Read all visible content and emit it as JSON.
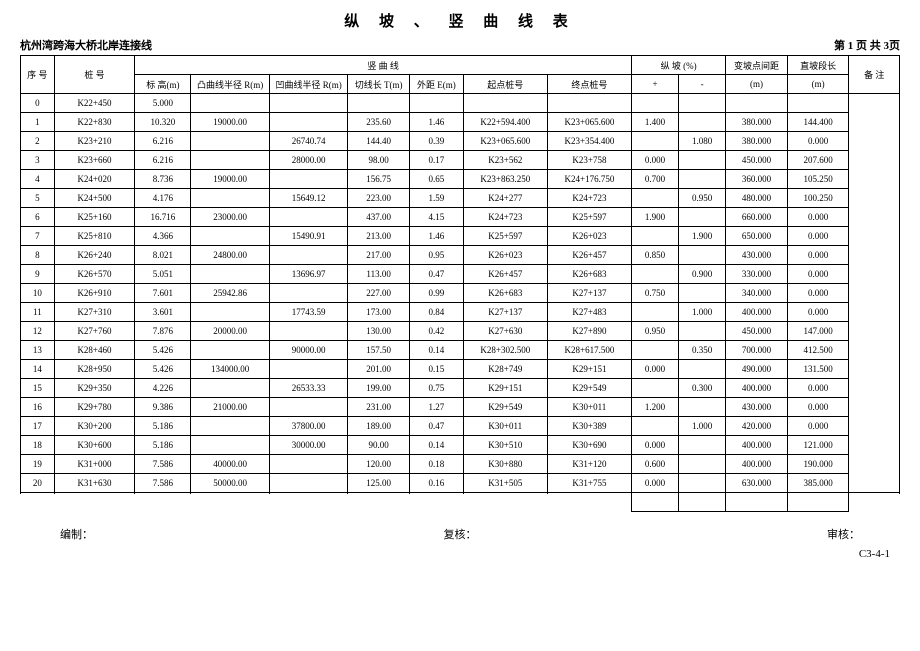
{
  "title": "纵   坡 、 竖   曲   线   表",
  "subtitle_left": "杭州湾跨海大桥北岸连接线",
  "subtitle_right": "第 1 页   共 3页",
  "header": {
    "r1": {
      "seq": "序   号",
      "station": "桩   号",
      "vcurve": "竖         曲         线",
      "slope": "纵    坡  (%)",
      "bp_dist": "变坡点间距",
      "straight": "直坡段长",
      "remark": "备   注"
    },
    "r2": {
      "elev": "标   高(m)",
      "convex": "凸曲线半径 R(m)",
      "concave": "凹曲线半径 R(m)",
      "tlen": "切线长 T(m)",
      "ext": "外距 E(m)",
      "start": "起点桩号",
      "end": "终点桩号",
      "plus": "+",
      "minus": "-",
      "m1": "(m)",
      "m2": "(m)"
    }
  },
  "rows": [
    {
      "n": "0",
      "st": "K22+450",
      "h": "5.000",
      "cv": "",
      "cc": "",
      "t": "",
      "e": "",
      "s": "",
      "d": "",
      "sp": [
        "1.400",
        ""
      ],
      "bp": "380.000",
      "sl": "144.400"
    },
    {
      "n": "1",
      "st": "K22+830",
      "h": "10.320",
      "cv": "19000.00",
      "cc": "",
      "t": "235.60",
      "e": "1.46",
      "s": "K22+594.400",
      "d": "K23+065.600",
      "sp": [
        "",
        "1.080"
      ],
      "bp": "380.000",
      "sl": "0.000"
    },
    {
      "n": "2",
      "st": "K23+210",
      "h": "6.216",
      "cv": "",
      "cc": "26740.74",
      "t": "144.40",
      "e": "0.39",
      "s": "K23+065.600",
      "d": "K23+354.400",
      "sp": [
        "0.000",
        ""
      ],
      "bp": "450.000",
      "sl": "207.600"
    },
    {
      "n": "3",
      "st": "K23+660",
      "h": "6.216",
      "cv": "",
      "cc": "28000.00",
      "t": "98.00",
      "e": "0.17",
      "s": "K23+562",
      "d": "K23+758",
      "sp": [
        "0.700",
        ""
      ],
      "bp": "360.000",
      "sl": "105.250"
    },
    {
      "n": "4",
      "st": "K24+020",
      "h": "8.736",
      "cv": "19000.00",
      "cc": "",
      "t": "156.75",
      "e": "0.65",
      "s": "K23+863.250",
      "d": "K24+176.750",
      "sp": [
        "",
        "0.950"
      ],
      "bp": "480.000",
      "sl": "100.250"
    },
    {
      "n": "5",
      "st": "K24+500",
      "h": "4.176",
      "cv": "",
      "cc": "15649.12",
      "t": "223.00",
      "e": "1.59",
      "s": "K24+277",
      "d": "K24+723",
      "sp": [
        "1.900",
        ""
      ],
      "bp": "660.000",
      "sl": "0.000"
    },
    {
      "n": "6",
      "st": "K25+160",
      "h": "16.716",
      "cv": "23000.00",
      "cc": "",
      "t": "437.00",
      "e": "4.15",
      "s": "K24+723",
      "d": "K25+597",
      "sp": [
        "",
        "1.900"
      ],
      "bp": "650.000",
      "sl": "0.000"
    },
    {
      "n": "7",
      "st": "K25+810",
      "h": "4.366",
      "cv": "",
      "cc": "15490.91",
      "t": "213.00",
      "e": "1.46",
      "s": "K25+597",
      "d": "K26+023",
      "sp": [
        "0.850",
        ""
      ],
      "bp": "430.000",
      "sl": "0.000"
    },
    {
      "n": "8",
      "st": "K26+240",
      "h": "8.021",
      "cv": "24800.00",
      "cc": "",
      "t": "217.00",
      "e": "0.95",
      "s": "K26+023",
      "d": "K26+457",
      "sp": [
        "",
        "0.900"
      ],
      "bp": "330.000",
      "sl": "0.000"
    },
    {
      "n": "9",
      "st": "K26+570",
      "h": "5.051",
      "cv": "",
      "cc": "13696.97",
      "t": "113.00",
      "e": "0.47",
      "s": "K26+457",
      "d": "K26+683",
      "sp": [
        "0.750",
        ""
      ],
      "bp": "340.000",
      "sl": "0.000"
    },
    {
      "n": "10",
      "st": "K26+910",
      "h": "7.601",
      "cv": "25942.86",
      "cc": "",
      "t": "227.00",
      "e": "0.99",
      "s": "K26+683",
      "d": "K27+137",
      "sp": [
        "",
        "1.000"
      ],
      "bp": "400.000",
      "sl": "0.000"
    },
    {
      "n": "11",
      "st": "K27+310",
      "h": "3.601",
      "cv": "",
      "cc": "17743.59",
      "t": "173.00",
      "e": "0.84",
      "s": "K27+137",
      "d": "K27+483",
      "sp": [
        "0.950",
        ""
      ],
      "bp": "450.000",
      "sl": "147.000"
    },
    {
      "n": "12",
      "st": "K27+760",
      "h": "7.876",
      "cv": "20000.00",
      "cc": "",
      "t": "130.00",
      "e": "0.42",
      "s": "K27+630",
      "d": "K27+890",
      "sp": [
        "",
        "0.350"
      ],
      "bp": "700.000",
      "sl": "412.500"
    },
    {
      "n": "13",
      "st": "K28+460",
      "h": "5.426",
      "cv": "",
      "cc": "90000.00",
      "t": "157.50",
      "e": "0.14",
      "s": "K28+302.500",
      "d": "K28+617.500",
      "sp": [
        "0.000",
        ""
      ],
      "bp": "490.000",
      "sl": "131.500"
    },
    {
      "n": "14",
      "st": "K28+950",
      "h": "5.426",
      "cv": "134000.00",
      "cc": "",
      "t": "201.00",
      "e": "0.15",
      "s": "K28+749",
      "d": "K29+151",
      "sp": [
        "",
        "0.300"
      ],
      "bp": "400.000",
      "sl": "0.000"
    },
    {
      "n": "15",
      "st": "K29+350",
      "h": "4.226",
      "cv": "",
      "cc": "26533.33",
      "t": "199.00",
      "e": "0.75",
      "s": "K29+151",
      "d": "K29+549",
      "sp": [
        "1.200",
        ""
      ],
      "bp": "430.000",
      "sl": "0.000"
    },
    {
      "n": "16",
      "st": "K29+780",
      "h": "9.386",
      "cv": "21000.00",
      "cc": "",
      "t": "231.00",
      "e": "1.27",
      "s": "K29+549",
      "d": "K30+011",
      "sp": [
        "",
        "1.000"
      ],
      "bp": "420.000",
      "sl": "0.000"
    },
    {
      "n": "17",
      "st": "K30+200",
      "h": "5.186",
      "cv": "",
      "cc": "37800.00",
      "t": "189.00",
      "e": "0.47",
      "s": "K30+011",
      "d": "K30+389",
      "sp": [
        "0.000",
        ""
      ],
      "bp": "400.000",
      "sl": "121.000"
    },
    {
      "n": "18",
      "st": "K30+600",
      "h": "5.186",
      "cv": "",
      "cc": "30000.00",
      "t": "90.00",
      "e": "0.14",
      "s": "K30+510",
      "d": "K30+690",
      "sp": [
        "0.600",
        ""
      ],
      "bp": "400.000",
      "sl": "190.000"
    },
    {
      "n": "19",
      "st": "K31+000",
      "h": "7.586",
      "cv": "40000.00",
      "cc": "",
      "t": "120.00",
      "e": "0.18",
      "s": "K30+880",
      "d": "K31+120",
      "sp": [
        "0.000",
        ""
      ],
      "bp": "630.000",
      "sl": "385.000"
    },
    {
      "n": "20",
      "st": "K31+630",
      "h": "7.586",
      "cv": "50000.00",
      "cc": "",
      "t": "125.00",
      "e": "0.16",
      "s": "K31+505",
      "d": "K31+755",
      "sp": [
        "",
        ""
      ],
      "bp": "",
      "sl": ""
    }
  ],
  "footer": {
    "a": "编制：",
    "b": "复核：",
    "c": "审核："
  },
  "pageid": "C3-4-1"
}
